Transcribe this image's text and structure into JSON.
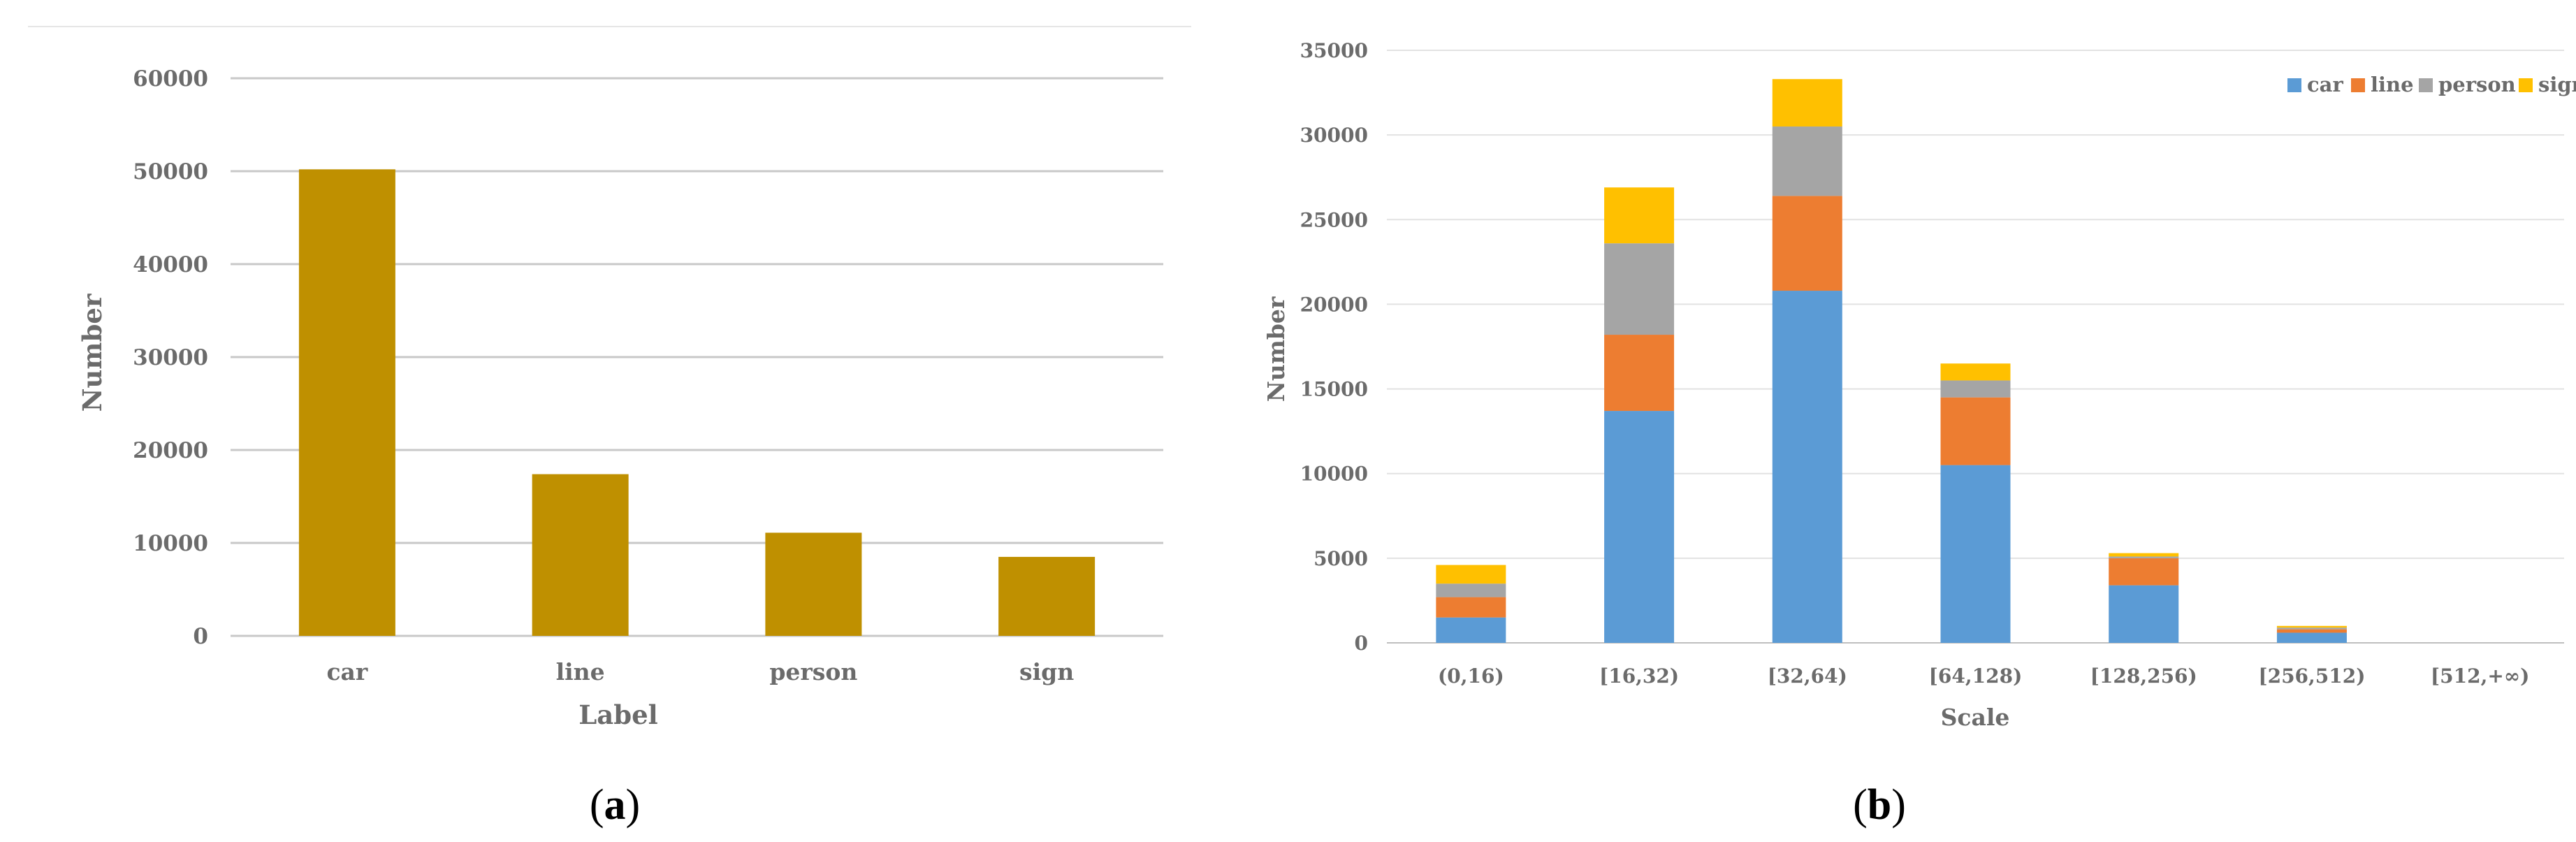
{
  "colors": {
    "bar_a": "#bf9000",
    "car": "#5b9bd5",
    "line": "#ed7d31",
    "person": "#a5a5a5",
    "sign": "#ffc000",
    "grid": "#c8c8c8",
    "tick_text": "#6b6b6b"
  },
  "chart_data": [
    {
      "type": "bar",
      "panel_label": "a",
      "categories": [
        "car",
        "line",
        "person",
        "sign"
      ],
      "values": [
        50200,
        17400,
        11100,
        8500
      ],
      "xlabel": "Label",
      "ylabel": "Number",
      "ylim": [
        0,
        60000
      ],
      "yticks": [
        0,
        10000,
        20000,
        30000,
        40000,
        50000,
        60000
      ],
      "grid": true
    },
    {
      "type": "bar",
      "stacked": true,
      "panel_label": "b",
      "categories": [
        "(0,16)",
        "[16,32)",
        "[32,64)",
        "[64,128)",
        "[128,256)",
        "[256,512)",
        "[512,+∞)"
      ],
      "series": [
        {
          "name": "car",
          "values": [
            1500,
            13700,
            20800,
            10500,
            3400,
            600,
            0
          ]
        },
        {
          "name": "line",
          "values": [
            1200,
            4500,
            5600,
            4000,
            1600,
            200,
            0
          ]
        },
        {
          "name": "person",
          "values": [
            800,
            5400,
            4100,
            1000,
            100,
            100,
            0
          ]
        },
        {
          "name": "sign",
          "values": [
            1100,
            3300,
            2800,
            1000,
            200,
            100,
            0
          ]
        }
      ],
      "xlabel": "Scale",
      "ylabel": "Number",
      "ylim": [
        0,
        35000
      ],
      "yticks": [
        0,
        5000,
        10000,
        15000,
        20000,
        25000,
        30000,
        35000
      ],
      "grid": true,
      "legend_position": "top-right"
    }
  ]
}
